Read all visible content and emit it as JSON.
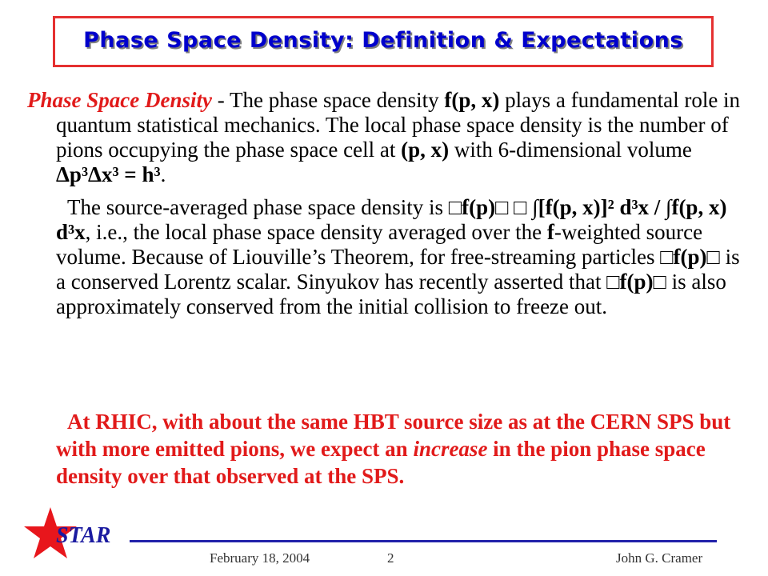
{
  "title": "Phase Space Density: Definition & Expectations",
  "para1": {
    "lead": "Phase Space Density",
    "t1": " - The phase space density ",
    "f": "f(p, x)",
    "t2": " plays a fundamental role in quantum statistical mechanics. The local phase space density is the number of pions occupying the phase space cell at ",
    "px": "(p, x)",
    "t3": " with 6-dimensional volume ",
    "vol": "Δp³Δx³ = h³",
    "t4": "."
  },
  "para2": {
    "t1": "The source-averaged phase space density is ",
    "eq1": "□f(p)□ □ ∫[f(p, x)]² d³x / ∫f(p, x) d³x",
    "t2": ",  i.e., the local phase space density averaged over the ",
    "f": "f",
    "t3": "-weighted source volume.  Because of Liouville’s Theorem, for free-streaming particles ",
    "fp1": "□f(p)□",
    "t4": " is a conserved Lorentz scalar. Sinyukov has recently asserted that ",
    "fp2": "□f(p)□",
    "t5": " is also approximately conserved from the initial collision to freeze out."
  },
  "conclusion": {
    "t1": "At RHIC, with about the same HBT source size as at the CERN SPS but with more emitted pions, we expect an ",
    "increase": "increase",
    "t2": " in the pion phase space density over that observed at the SPS."
  },
  "footer": {
    "logo_text": "STAR",
    "date": "February 18, 2004",
    "page": "2",
    "author": "John G. Cramer"
  },
  "colors": {
    "title": "#0000cc",
    "title_border": "#e53030",
    "accent_red": "#e11a1a",
    "footer_line": "#2222aa"
  }
}
